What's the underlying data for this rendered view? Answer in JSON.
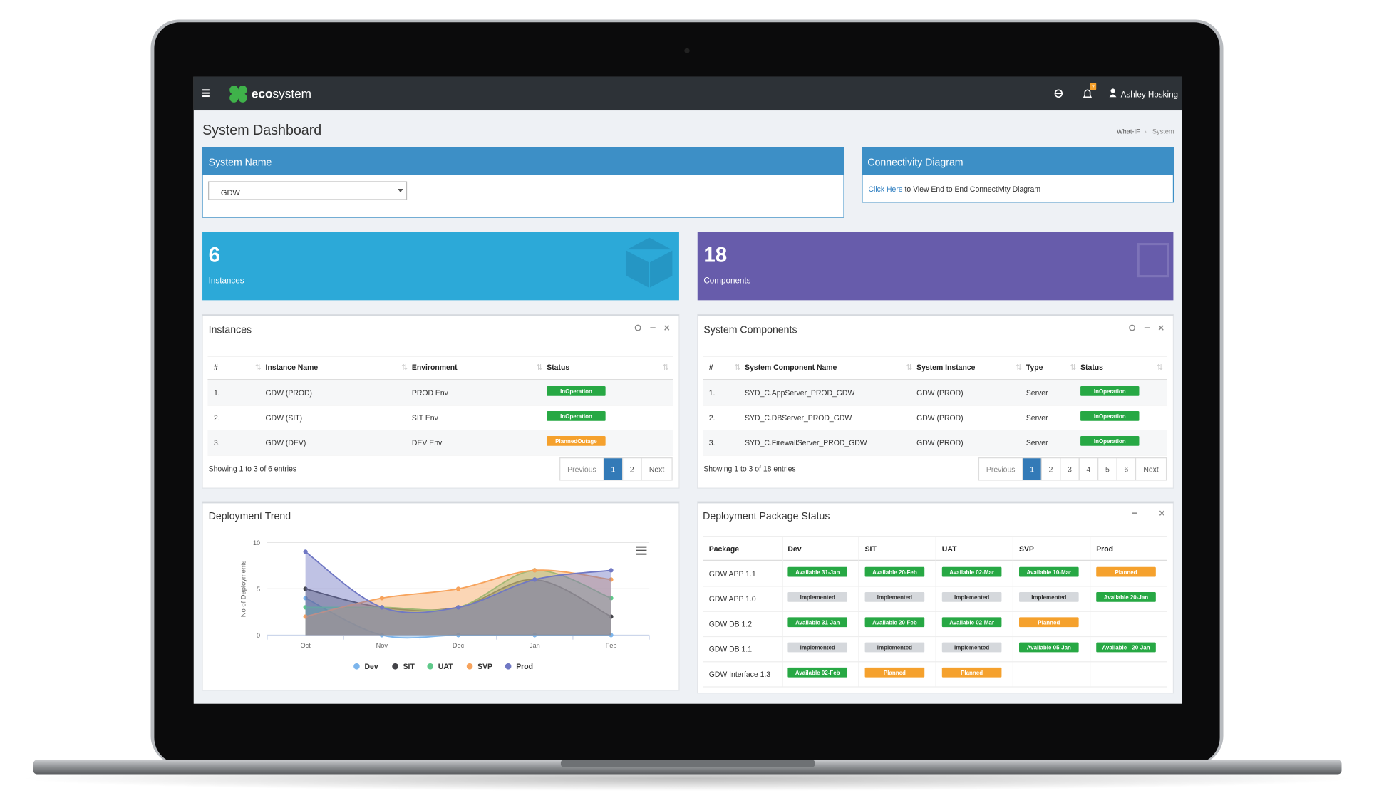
{
  "navbar": {
    "brand_prefix": "eco",
    "brand_suffix": "system",
    "notifications": 7,
    "user": "Ashley Hosking"
  },
  "page": {
    "title": "System Dashboard",
    "breadcrumb": [
      "What-IF",
      "System"
    ]
  },
  "system_name_panel": {
    "title": "System Name",
    "selected": "GDW"
  },
  "connectivity_panel": {
    "title": "Connectivity Diagram",
    "link": "Click Here",
    "text": " to View End to End Connectivity Diagram"
  },
  "stats": [
    {
      "value": 6,
      "label": "Instances",
      "color": "#2ca9d8"
    },
    {
      "value": 18,
      "label": "Components",
      "color": "#675cab"
    }
  ],
  "instances_table": {
    "title": "Instances",
    "columns": [
      "#",
      "Instance Name",
      "Environment",
      "Status"
    ],
    "rows": [
      [
        "1.",
        "GDW (PROD)",
        "PROD Env",
        {
          "text": "InOperation",
          "color": "#27a844"
        }
      ],
      [
        "2.",
        "GDW (SIT)",
        "SIT Env",
        {
          "text": "InOperation",
          "color": "#27a844"
        }
      ],
      [
        "3.",
        "GDW (DEV)",
        "DEV Env",
        {
          "text": "PlannedOutage",
          "color": "#f5a12d"
        }
      ]
    ],
    "info": "Showing 1 to 3 of 6 entries",
    "pagination": [
      "Previous",
      "1",
      "2",
      "Next"
    ],
    "active_page": 1
  },
  "components_table": {
    "title": "System Components",
    "columns": [
      "#",
      "System Component Name",
      "System Instance",
      "Type",
      "Status"
    ],
    "rows": [
      [
        "1.",
        "SYD_C.AppServer_PROD_GDW",
        "GDW (PROD)",
        "Server",
        {
          "text": "InOperation",
          "color": "#27a844"
        }
      ],
      [
        "2.",
        "SYD_C.DBServer_PROD_GDW",
        "GDW (PROD)",
        "Server",
        {
          "text": "InOperation",
          "color": "#27a844"
        }
      ],
      [
        "3.",
        "SYD_C.FirewallServer_PROD_GDW",
        "GDW (PROD)",
        "Server",
        {
          "text": "InOperation",
          "color": "#27a844"
        }
      ]
    ],
    "info": "Showing 1 to 3 of 18 entries",
    "pagination": [
      "Previous",
      "1",
      "2",
      "3",
      "4",
      "5",
      "6",
      "Next"
    ],
    "active_page": 1
  },
  "chart_data": {
    "type": "area",
    "title": "Deployment Trend",
    "y_label": "No of Deployments",
    "categories": [
      "Oct",
      "Nov",
      "Dec",
      "Jan",
      "Feb"
    ],
    "ylim": [
      0,
      10
    ],
    "yticks": [
      0,
      5,
      10
    ],
    "grid": true,
    "series": [
      {
        "name": "Dev",
        "color": "#7cb5ec",
        "values": [
          4,
          0,
          0,
          0,
          0
        ]
      },
      {
        "name": "SIT",
        "color": "#434348",
        "values": [
          5,
          3,
          3,
          6,
          2
        ]
      },
      {
        "name": "UAT",
        "color": "#5fc98a",
        "values": [
          3,
          3,
          3,
          7,
          4
        ]
      },
      {
        "name": "SVP",
        "color": "#f7a35c",
        "values": [
          2,
          4,
          5,
          7,
          6
        ]
      },
      {
        "name": "Prod",
        "color": "#7078c4",
        "values": [
          9,
          3,
          3,
          6,
          7
        ]
      }
    ]
  },
  "package_table": {
    "title": "Deployment Package Status",
    "columns": [
      "Package",
      "Dev",
      "SIT",
      "UAT",
      "SVP",
      "Prod"
    ],
    "rows": [
      [
        "GDW APP 1.1",
        {
          "text": "Available 31-Jan",
          "color": "#27a844",
          "text_color": "#fff"
        },
        {
          "text": "Available 20-Feb",
          "color": "#27a844",
          "text_color": "#fff"
        },
        {
          "text": "Available 02-Mar",
          "color": "#27a844",
          "text_color": "#fff"
        },
        {
          "text": "Available 10-Mar",
          "color": "#27a844",
          "text_color": "#fff"
        },
        {
          "text": "Planned",
          "color": "#f5a12d",
          "text_color": "#fff"
        }
      ],
      [
        "GDW APP 1.0",
        {
          "text": "Implemented",
          "color": "#d5d8dc",
          "text_color": "#333"
        },
        {
          "text": "Implemented",
          "color": "#d5d8dc",
          "text_color": "#333"
        },
        {
          "text": "Implemented",
          "color": "#d5d8dc",
          "text_color": "#333"
        },
        {
          "text": "Implemented",
          "color": "#d5d8dc",
          "text_color": "#333"
        },
        {
          "text": "Available 20-Jan",
          "color": "#27a844",
          "text_color": "#fff"
        }
      ],
      [
        "GDW DB 1.2",
        {
          "text": "Available 31-Jan",
          "color": "#27a844",
          "text_color": "#fff"
        },
        {
          "text": "Available 20-Feb",
          "color": "#27a844",
          "text_color": "#fff"
        },
        {
          "text": "Available 02-Mar",
          "color": "#27a844",
          "text_color": "#fff"
        },
        {
          "text": "Planned",
          "color": "#f5a12d",
          "text_color": "#fff"
        },
        null
      ],
      [
        "GDW DB 1.1",
        {
          "text": "Implemented",
          "color": "#d5d8dc",
          "text_color": "#333"
        },
        {
          "text": "Implemented",
          "color": "#d5d8dc",
          "text_color": "#333"
        },
        {
          "text": "Implemented",
          "color": "#d5d8dc",
          "text_color": "#333"
        },
        {
          "text": "Available 05-Jan",
          "color": "#27a844",
          "text_color": "#fff"
        },
        {
          "text": "Available - 20-Jan",
          "color": "#27a844",
          "text_color": "#fff"
        }
      ],
      [
        "GDW Interface 1.3",
        {
          "text": "Available 02-Feb",
          "color": "#27a844",
          "text_color": "#fff"
        },
        {
          "text": "Planned",
          "color": "#f5a12d",
          "text_color": "#fff"
        },
        {
          "text": "Planned",
          "color": "#f5a12d",
          "text_color": "#fff"
        },
        null,
        null
      ]
    ]
  }
}
